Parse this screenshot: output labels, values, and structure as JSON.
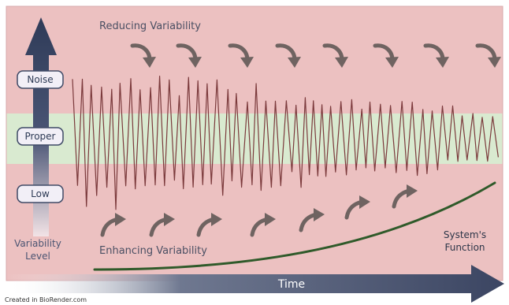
{
  "diagram": {
    "top_label": "Reducing Variability",
    "bottom_label": "Enhancing Variability",
    "levels": [
      "Noise",
      "Proper",
      "Low"
    ],
    "axis_title_line1": "Variability",
    "axis_title_line2": "Level",
    "time_label": "Time",
    "curve_label_line1": "System's",
    "curve_label_line2": "Function",
    "credit": "Created in BioRender.com"
  },
  "colors": {
    "noise_band": "#ecc1c1",
    "proper_band": "#d9ead0",
    "waveform": "#7b3a3c",
    "arrows": "#6f6361",
    "axis_arrow": "#3e4a66",
    "function_curve": "#2f5a2a"
  }
}
